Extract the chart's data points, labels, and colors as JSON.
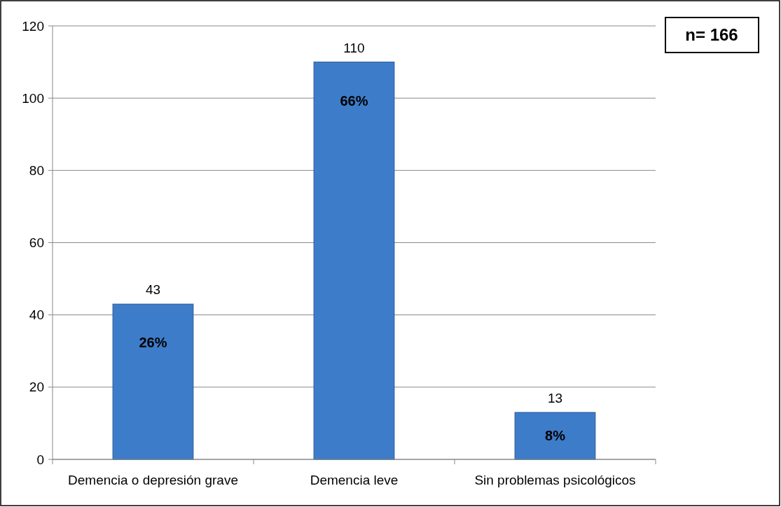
{
  "chart_data": {
    "type": "bar",
    "categories": [
      "Demencia o depresión grave",
      "Demencia leve",
      "Sin problemas psicológicos"
    ],
    "values": [
      43,
      110,
      13
    ],
    "color": "#3d7cc9",
    "data_labels": true,
    "ylim": [
      0,
      120
    ],
    "yticks": [
      0,
      20,
      40,
      60,
      80,
      100,
      120
    ],
    "grid": "y",
    "annotations": [
      "26%",
      "66%",
      "8%",
      "n= 166"
    ]
  }
}
